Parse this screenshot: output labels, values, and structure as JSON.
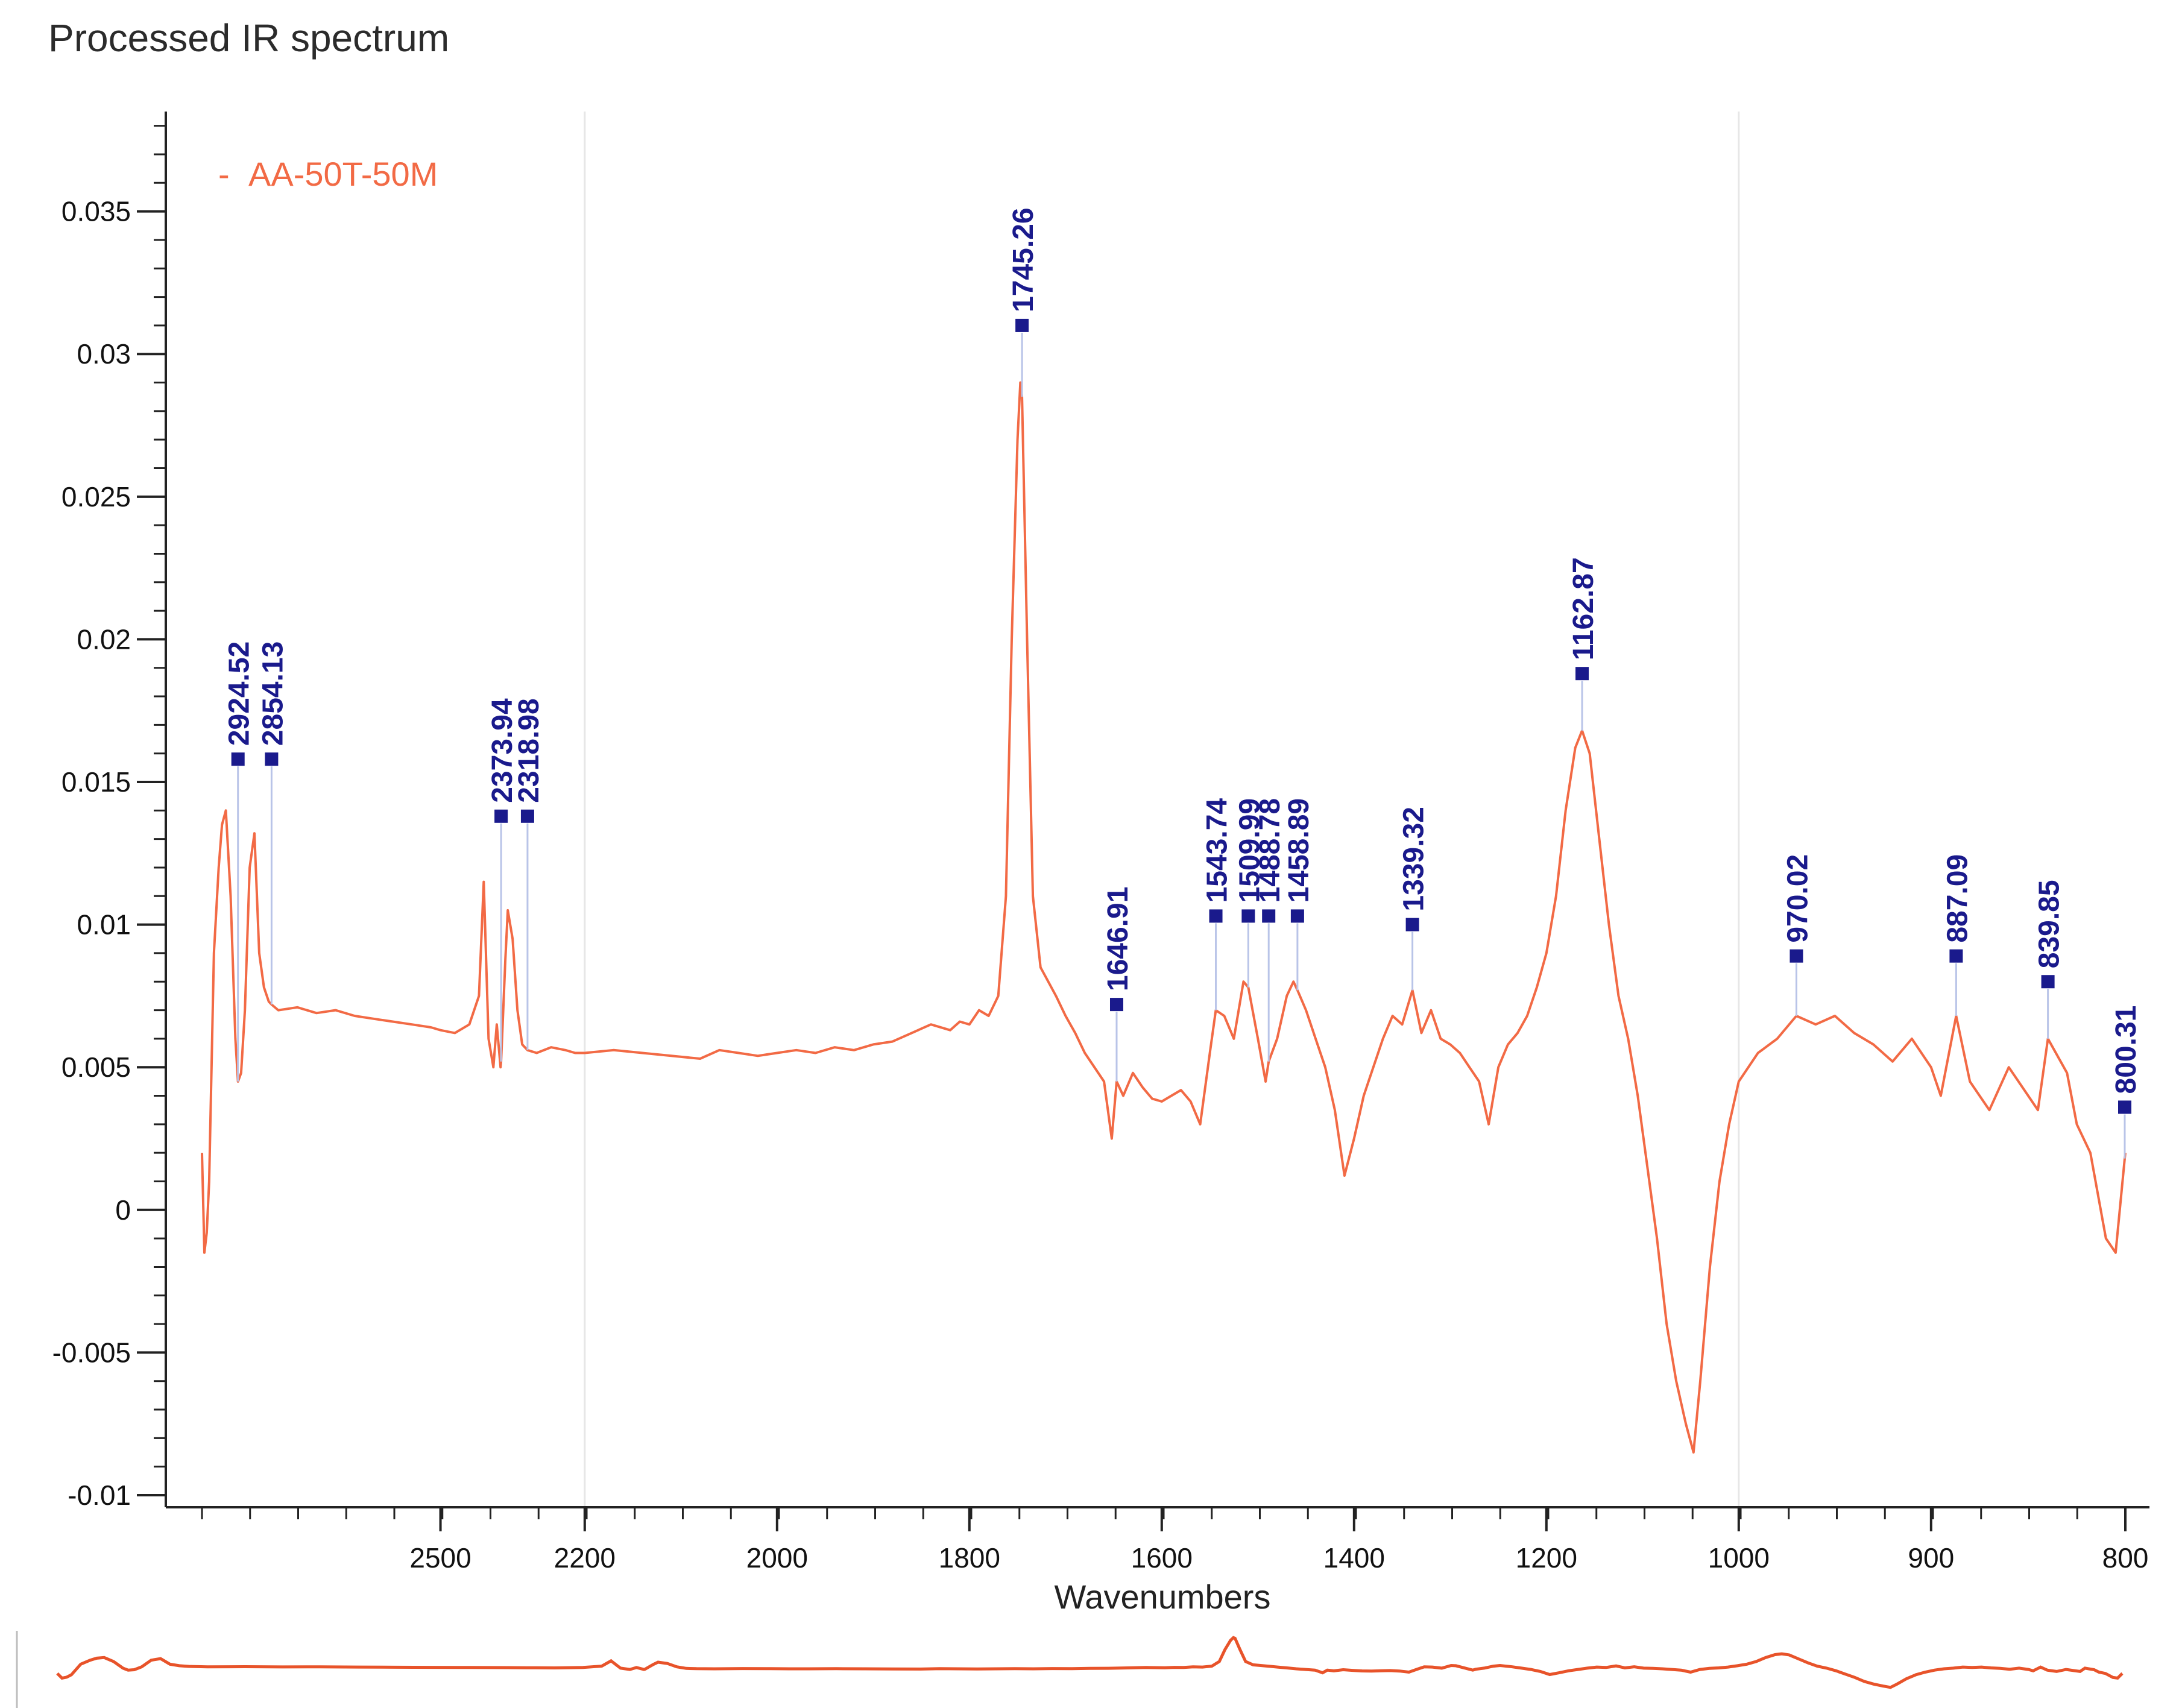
{
  "title": "Processed IR spectrum",
  "colors": {
    "line": "#f26a45",
    "peak_label": "#1a1a8c",
    "axis": "#222222",
    "grid": "#e6e6e6"
  },
  "chart_data": {
    "type": "line",
    "title": "Processed IR spectrum",
    "xlabel": "Wavenumbers",
    "ylabel": "",
    "x_axis_reversed": true,
    "x_axis_segmented": true,
    "x_ticks": [
      {
        "value": 2500,
        "label": "2500"
      },
      {
        "value": 2200,
        "label": "2200"
      },
      {
        "value": 2000,
        "label": "2000"
      },
      {
        "value": 1800,
        "label": "1800"
      },
      {
        "value": 1600,
        "label": "1600"
      },
      {
        "value": 1400,
        "label": "1400"
      },
      {
        "value": 1200,
        "label": "1200"
      },
      {
        "value": 1000,
        "label": "1000"
      },
      {
        "value": 900,
        "label": "900"
      },
      {
        "value": 800,
        "label": "800"
      }
    ],
    "x_breakpoints": [
      {
        "value": 3000,
        "u": 0.0
      },
      {
        "value": 2500,
        "u": 0.124
      },
      {
        "value": 2200,
        "u": 0.199
      },
      {
        "value": 2000,
        "u": 0.299
      },
      {
        "value": 1800,
        "u": 0.399
      },
      {
        "value": 1600,
        "u": 0.499
      },
      {
        "value": 1400,
        "u": 0.599
      },
      {
        "value": 1200,
        "u": 0.699
      },
      {
        "value": 1000,
        "u": 0.799
      },
      {
        "value": 900,
        "u": 0.899
      },
      {
        "value": 800,
        "u": 1.0
      }
    ],
    "ylim": [
      -0.01,
      0.0385
    ],
    "y_ticks": [
      {
        "value": 0.035,
        "label": "0.035"
      },
      {
        "value": 0.03,
        "label": "0.03"
      },
      {
        "value": 0.025,
        "label": "0.025"
      },
      {
        "value": 0.02,
        "label": "0.02"
      },
      {
        "value": 0.015,
        "label": "0.015"
      },
      {
        "value": 0.01,
        "label": "0.01"
      },
      {
        "value": 0.005,
        "label": "0.005"
      },
      {
        "value": 0,
        "label": "0"
      },
      {
        "value": -0.005,
        "label": "-0.005"
      },
      {
        "value": -0.01,
        "label": "-0.01"
      }
    ],
    "grid_vertical_at": [
      2200,
      1000
    ],
    "legend": {
      "position": "top-left",
      "entries": [
        {
          "label": "AA-50T-50M",
          "marker": "-"
        }
      ]
    },
    "series": [
      {
        "name": "AA-50T-50M",
        "points": [
          [
            3000,
            0.002
          ],
          [
            2995,
            -0.0015
          ],
          [
            2990,
            -0.0008
          ],
          [
            2985,
            0.001
          ],
          [
            2975,
            0.009
          ],
          [
            2965,
            0.012
          ],
          [
            2958,
            0.0135
          ],
          [
            2950,
            0.014
          ],
          [
            2940,
            0.011
          ],
          [
            2930,
            0.006
          ],
          [
            2924.52,
            0.0045
          ],
          [
            2918,
            0.0048
          ],
          [
            2910,
            0.007
          ],
          [
            2900,
            0.012
          ],
          [
            2890,
            0.0132
          ],
          [
            2880,
            0.009
          ],
          [
            2870,
            0.0078
          ],
          [
            2860,
            0.0073
          ],
          [
            2854.13,
            0.0072
          ],
          [
            2840,
            0.007
          ],
          [
            2800,
            0.0071
          ],
          [
            2760,
            0.0069
          ],
          [
            2720,
            0.007
          ],
          [
            2680,
            0.0068
          ],
          [
            2640,
            0.0067
          ],
          [
            2600,
            0.0066
          ],
          [
            2560,
            0.0065
          ],
          [
            2520,
            0.0064
          ],
          [
            2500,
            0.0063
          ],
          [
            2470,
            0.0062
          ],
          [
            2440,
            0.0065
          ],
          [
            2420,
            0.0075
          ],
          [
            2410,
            0.0115
          ],
          [
            2400,
            0.006
          ],
          [
            2390,
            0.005
          ],
          [
            2383,
            0.0065
          ],
          [
            2375,
            0.005
          ],
          [
            2373.94,
            0.0052
          ],
          [
            2365,
            0.0088
          ],
          [
            2360,
            0.0105
          ],
          [
            2350,
            0.0095
          ],
          [
            2340,
            0.007
          ],
          [
            2330,
            0.0058
          ],
          [
            2318.98,
            0.0056
          ],
          [
            2300,
            0.0055
          ],
          [
            2270,
            0.0057
          ],
          [
            2240,
            0.0056
          ],
          [
            2220,
            0.0055
          ],
          [
            2200,
            0.0055
          ],
          [
            2170,
            0.0056
          ],
          [
            2140,
            0.0055
          ],
          [
            2110,
            0.0054
          ],
          [
            2080,
            0.0053
          ],
          [
            2060,
            0.0056
          ],
          [
            2040,
            0.0055
          ],
          [
            2020,
            0.0054
          ],
          [
            2000,
            0.0055
          ],
          [
            1980,
            0.0056
          ],
          [
            1960,
            0.0055
          ],
          [
            1940,
            0.0057
          ],
          [
            1920,
            0.0056
          ],
          [
            1900,
            0.0058
          ],
          [
            1880,
            0.0059
          ],
          [
            1860,
            0.0062
          ],
          [
            1840,
            0.0065
          ],
          [
            1820,
            0.0063
          ],
          [
            1810,
            0.0066
          ],
          [
            1800,
            0.0065
          ],
          [
            1790,
            0.007
          ],
          [
            1780,
            0.0068
          ],
          [
            1770,
            0.0075
          ],
          [
            1762,
            0.011
          ],
          [
            1756,
            0.02
          ],
          [
            1750,
            0.027
          ],
          [
            1747,
            0.029
          ],
          [
            1745.26,
            0.0285
          ],
          [
            1740,
            0.02
          ],
          [
            1734,
            0.011
          ],
          [
            1726,
            0.0085
          ],
          [
            1718,
            0.008
          ],
          [
            1710,
            0.0075
          ],
          [
            1700,
            0.0068
          ],
          [
            1690,
            0.0062
          ],
          [
            1680,
            0.0055
          ],
          [
            1670,
            0.005
          ],
          [
            1660,
            0.0045
          ],
          [
            1652,
            0.0025
          ],
          [
            1646.91,
            0.0045
          ],
          [
            1640,
            0.004
          ],
          [
            1630,
            0.0048
          ],
          [
            1620,
            0.0043
          ],
          [
            1610,
            0.0039
          ],
          [
            1600,
            0.0038
          ],
          [
            1590,
            0.004
          ],
          [
            1580,
            0.0042
          ],
          [
            1570,
            0.0038
          ],
          [
            1560,
            0.003
          ],
          [
            1550,
            0.0055
          ],
          [
            1543.74,
            0.007
          ],
          [
            1535,
            0.0068
          ],
          [
            1525,
            0.006
          ],
          [
            1515,
            0.008
          ],
          [
            1509.99,
            0.0078
          ],
          [
            1500,
            0.006
          ],
          [
            1492,
            0.0045
          ],
          [
            1488.78,
            0.0052
          ],
          [
            1480,
            0.006
          ],
          [
            1470,
            0.0075
          ],
          [
            1463,
            0.008
          ],
          [
            1458.89,
            0.0077
          ],
          [
            1450,
            0.007
          ],
          [
            1440,
            0.006
          ],
          [
            1430,
            0.005
          ],
          [
            1420,
            0.0035
          ],
          [
            1410,
            0.0012
          ],
          [
            1400,
            0.0025
          ],
          [
            1390,
            0.004
          ],
          [
            1380,
            0.005
          ],
          [
            1370,
            0.006
          ],
          [
            1360,
            0.0068
          ],
          [
            1350,
            0.0065
          ],
          [
            1339.32,
            0.0077
          ],
          [
            1330,
            0.0062
          ],
          [
            1320,
            0.007
          ],
          [
            1310,
            0.006
          ],
          [
            1300,
            0.0058
          ],
          [
            1290,
            0.0055
          ],
          [
            1280,
            0.005
          ],
          [
            1270,
            0.0045
          ],
          [
            1260,
            0.003
          ],
          [
            1250,
            0.005
          ],
          [
            1240,
            0.0058
          ],
          [
            1230,
            0.0062
          ],
          [
            1220,
            0.0068
          ],
          [
            1210,
            0.0078
          ],
          [
            1200,
            0.009
          ],
          [
            1190,
            0.011
          ],
          [
            1180,
            0.014
          ],
          [
            1170,
            0.0162
          ],
          [
            1162.87,
            0.0168
          ],
          [
            1155,
            0.016
          ],
          [
            1145,
            0.013
          ],
          [
            1135,
            0.01
          ],
          [
            1125,
            0.0075
          ],
          [
            1115,
            0.006
          ],
          [
            1105,
            0.004
          ],
          [
            1095,
            0.0015
          ],
          [
            1085,
            -0.001
          ],
          [
            1075,
            -0.004
          ],
          [
            1065,
            -0.006
          ],
          [
            1055,
            -0.0075
          ],
          [
            1047,
            -0.0085
          ],
          [
            1040,
            -0.006
          ],
          [
            1030,
            -0.002
          ],
          [
            1020,
            0.001
          ],
          [
            1010,
            0.003
          ],
          [
            1000,
            0.0045
          ],
          [
            990,
            0.0055
          ],
          [
            980,
            0.006
          ],
          [
            970.02,
            0.0068
          ],
          [
            960,
            0.0065
          ],
          [
            950,
            0.0068
          ],
          [
            940,
            0.0062
          ],
          [
            930,
            0.0058
          ],
          [
            920,
            0.0052
          ],
          [
            910,
            0.006
          ],
          [
            900,
            0.005
          ],
          [
            895,
            0.004
          ],
          [
            887.09,
            0.0068
          ],
          [
            880,
            0.0045
          ],
          [
            870,
            0.0035
          ],
          [
            860,
            0.005
          ],
          [
            850,
            0.004
          ],
          [
            845,
            0.0035
          ],
          [
            839.85,
            0.006
          ],
          [
            830,
            0.0048
          ],
          [
            825,
            0.003
          ],
          [
            818,
            0.002
          ],
          [
            810,
            -0.001
          ],
          [
            805,
            -0.0015
          ],
          [
            800.31,
            0.0018
          ],
          [
            800,
            0.002
          ]
        ]
      }
    ],
    "peak_labels": [
      {
        "wavenumber": 2924.52,
        "label": "2924.52",
        "y": 0.0158
      },
      {
        "wavenumber": 2854.13,
        "label": "2854.13",
        "y": 0.0158
      },
      {
        "wavenumber": 2373.94,
        "label": "2373.94",
        "y": 0.0138
      },
      {
        "wavenumber": 2318.98,
        "label": "2318.98",
        "y": 0.0138
      },
      {
        "wavenumber": 1745.26,
        "label": "1745.26",
        "y": 0.031
      },
      {
        "wavenumber": 1646.91,
        "label": "1646.91",
        "y": 0.0072
      },
      {
        "wavenumber": 1543.74,
        "label": "1543.74",
        "y": 0.0103
      },
      {
        "wavenumber": 1509.99,
        "label": "1509.99",
        "y": 0.0103
      },
      {
        "wavenumber": 1488.78,
        "label": "1488.78",
        "y": 0.0103
      },
      {
        "wavenumber": 1458.89,
        "label": "1458.89",
        "y": 0.0103
      },
      {
        "wavenumber": 1339.32,
        "label": "1339.32",
        "y": 0.01
      },
      {
        "wavenumber": 1162.87,
        "label": "1162.87",
        "y": 0.0188
      },
      {
        "wavenumber": 970.02,
        "label": "970.02",
        "y": 0.0089
      },
      {
        "wavenumber": 887.09,
        "label": "887.09",
        "y": 0.0089
      },
      {
        "wavenumber": 839.85,
        "label": "839.85",
        "y": 0.008
      },
      {
        "wavenumber": 800.31,
        "label": "800.31",
        "y": 0.0036
      }
    ]
  }
}
